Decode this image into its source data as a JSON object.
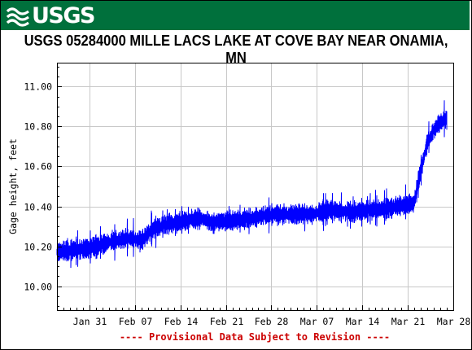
{
  "banner": {
    "agency": "USGS",
    "color": "#00703c"
  },
  "chart_data": {
    "type": "line",
    "title": "USGS 05284000 MILLE LACS LAKE AT COVE BAY NEAR ONAMIA, MN",
    "ylabel": "Gage height, feet",
    "xlabel": "",
    "ylim": [
      9.88,
      11.12
    ],
    "xlim": [
      "2023-01-26",
      "2023-03-28"
    ],
    "y_ticks": [
      10.0,
      10.2,
      10.4,
      10.6,
      10.8,
      11.0
    ],
    "y_tick_labels": [
      "10.00",
      "10.20",
      "10.40",
      "10.60",
      "10.80",
      "11.00"
    ],
    "x_ticks": [
      "2023-01-31",
      "2023-02-07",
      "2023-02-14",
      "2023-02-21",
      "2023-02-28",
      "2023-03-07",
      "2023-03-14",
      "2023-03-21",
      "2023-03-28"
    ],
    "x_tick_labels": [
      "Jan 31",
      "Feb 07",
      "Feb 14",
      "Feb 21",
      "Feb 28",
      "Mar 07",
      "Mar 14",
      "Mar 21",
      "Mar 28"
    ],
    "grid": true,
    "footnote": "---- Provisional Data Subject to Revision ----",
    "footnote_color": "#cc0000",
    "line_color": "#0000ff",
    "series": [
      {
        "x": [
          "2023-01-26",
          "2023-01-28",
          "2023-01-31",
          "2023-02-03",
          "2023-02-06",
          "2023-02-08",
          "2023-02-10",
          "2023-02-12",
          "2023-02-15",
          "2023-02-17",
          "2023-02-19",
          "2023-02-22",
          "2023-02-25",
          "2023-02-28",
          "2023-03-03",
          "2023-03-06",
          "2023-03-09",
          "2023-03-12",
          "2023-03-15",
          "2023-03-18",
          "2023-03-21",
          "2023-03-22",
          "2023-03-23",
          "2023-03-24",
          "2023-03-25",
          "2023-03-26",
          "2023-03-27"
        ],
        "y": [
          10.17,
          10.18,
          10.19,
          10.22,
          10.24,
          10.23,
          10.29,
          10.31,
          10.33,
          10.34,
          10.32,
          10.33,
          10.34,
          10.36,
          10.36,
          10.36,
          10.38,
          10.37,
          10.38,
          10.39,
          10.41,
          10.42,
          10.58,
          10.72,
          10.78,
          10.82,
          10.84
        ]
      }
    ]
  }
}
